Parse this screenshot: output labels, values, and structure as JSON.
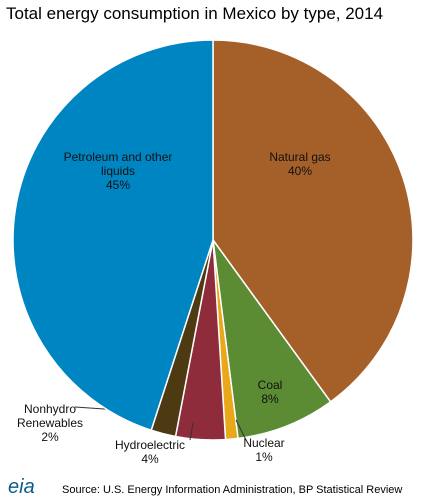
{
  "chart_data": {
    "type": "pie",
    "title": "Total energy consumption in Mexico by type, 2014",
    "categories": [
      "Natural gas",
      "Coal",
      "Nuclear",
      "Hydroelectric",
      "Nonhydro Renewables",
      "Petroleum and other liquids"
    ],
    "values": [
      40,
      8,
      1,
      4,
      2,
      45
    ],
    "value_labels": [
      "40%",
      "8%",
      "1%",
      "4%",
      "2%",
      "45%"
    ],
    "colors": [
      "#a5602a",
      "#5b8b33",
      "#e9a71a",
      "#8e2c3b",
      "#4d3a12",
      "#0085c3"
    ],
    "source": "Source: U.S. Energy Information Administration, BP Statistical Review",
    "logo": "eia"
  }
}
